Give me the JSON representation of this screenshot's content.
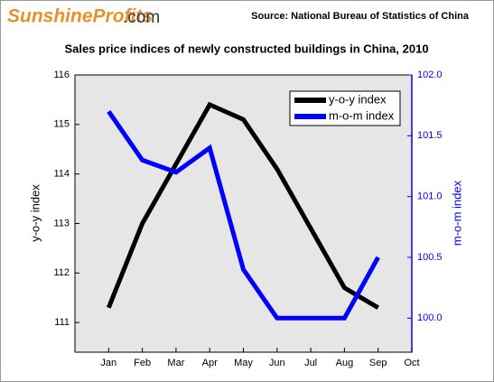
{
  "chart_data": {
    "type": "line",
    "logo": [
      "SunshineProfits",
      ".com"
    ],
    "source": "Source: National Bureau of Statistics of China",
    "title": "Sales price indices of newly constructed buildings in China, 2010",
    "y_label": "y-o-y index",
    "y2_label": "m-o-m index",
    "categories": [
      "Jan",
      "Feb",
      "Mar",
      "Apr",
      "May",
      "Jun",
      "Jul",
      "Aug",
      "Sep",
      "Oct"
    ],
    "series": [
      {
        "name": "y-o-y index",
        "color": "#000000",
        "values": [
          111.3,
          113.0,
          114.2,
          115.4,
          115.1,
          114.1,
          112.9,
          111.7,
          111.3,
          null
        ]
      },
      {
        "name": "m-o-m index",
        "color": "#0000ff",
        "axis": "y2",
        "values": [
          101.7,
          101.3,
          101.2,
          101.4,
          100.4,
          100.0,
          100.0,
          100.0,
          100.5,
          null
        ]
      }
    ],
    "ylim": [
      110.4,
      116
    ],
    "yticks": [
      111,
      112,
      113,
      114,
      115,
      116
    ],
    "y2lim": [
      99.72,
      102
    ],
    "y2ticks": [
      {
        "value": 100,
        "label": "100.0"
      },
      100.5,
      {
        "value": 101,
        "label": "101.0"
      },
      101.5,
      {
        "value": 102,
        "label": "102.0"
      }
    ],
    "legend": "upper right",
    "grid": false
  }
}
